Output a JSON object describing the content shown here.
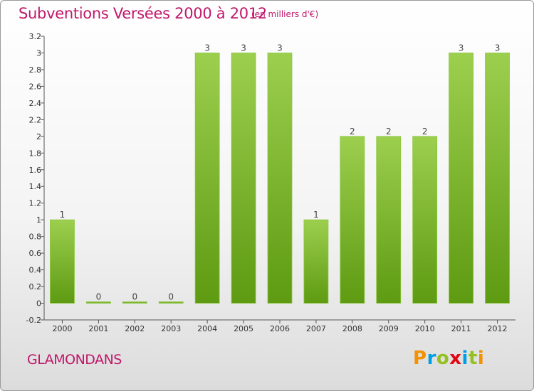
{
  "header": {
    "title": "Subventions Versées 2000 à 2012",
    "subtitle": "(en milliers d'€)"
  },
  "footer": {
    "commune": "GLAMONDANS",
    "logo": [
      "P",
      "r",
      "o",
      "x",
      "i",
      "t",
      "i"
    ],
    "logo_colors": [
      "#f39200",
      "#009fe3",
      "#95c11f",
      "#e30613",
      "#009fe3",
      "#95c11f",
      "#f39200"
    ]
  },
  "chart_data": {
    "type": "bar",
    "title": "Subventions Versées 2000 à 2012",
    "subtitle": "(en milliers d'€)",
    "xlabel": "",
    "ylabel": "",
    "categories": [
      "2000",
      "2001",
      "2002",
      "2003",
      "2004",
      "2005",
      "2006",
      "2007",
      "2008",
      "2009",
      "2010",
      "2011",
      "2012"
    ],
    "values": [
      1,
      0,
      0,
      0,
      3,
      3,
      3,
      1,
      2,
      2,
      2,
      3,
      3
    ],
    "data_labels": [
      "1",
      "0",
      "0",
      "0",
      "3",
      "3",
      "3",
      "1",
      "2",
      "2",
      "2",
      "3",
      "3"
    ],
    "ylim": [
      -0.2,
      3.2
    ],
    "yticks": [
      3.2,
      3,
      2.8,
      2.6,
      2.4,
      2.2,
      2,
      1.8,
      1.6,
      1.4,
      1.2,
      1,
      0.8,
      0.6,
      0.4,
      0.2,
      0,
      -0.2
    ],
    "ytick_labels": [
      "3.2",
      "3",
      "2.8",
      "2.6",
      "2.4",
      "2.2",
      "2",
      "1.8",
      "1.6",
      "1.4",
      "1.2",
      "1",
      "0.8",
      "0.6",
      "0.4",
      "0.2",
      "0",
      "-0.2"
    ],
    "grid": false,
    "colors": {
      "bar_top": "#9ccf4e",
      "bar_bottom": "#5e9a12",
      "label": "#c0186a"
    }
  }
}
